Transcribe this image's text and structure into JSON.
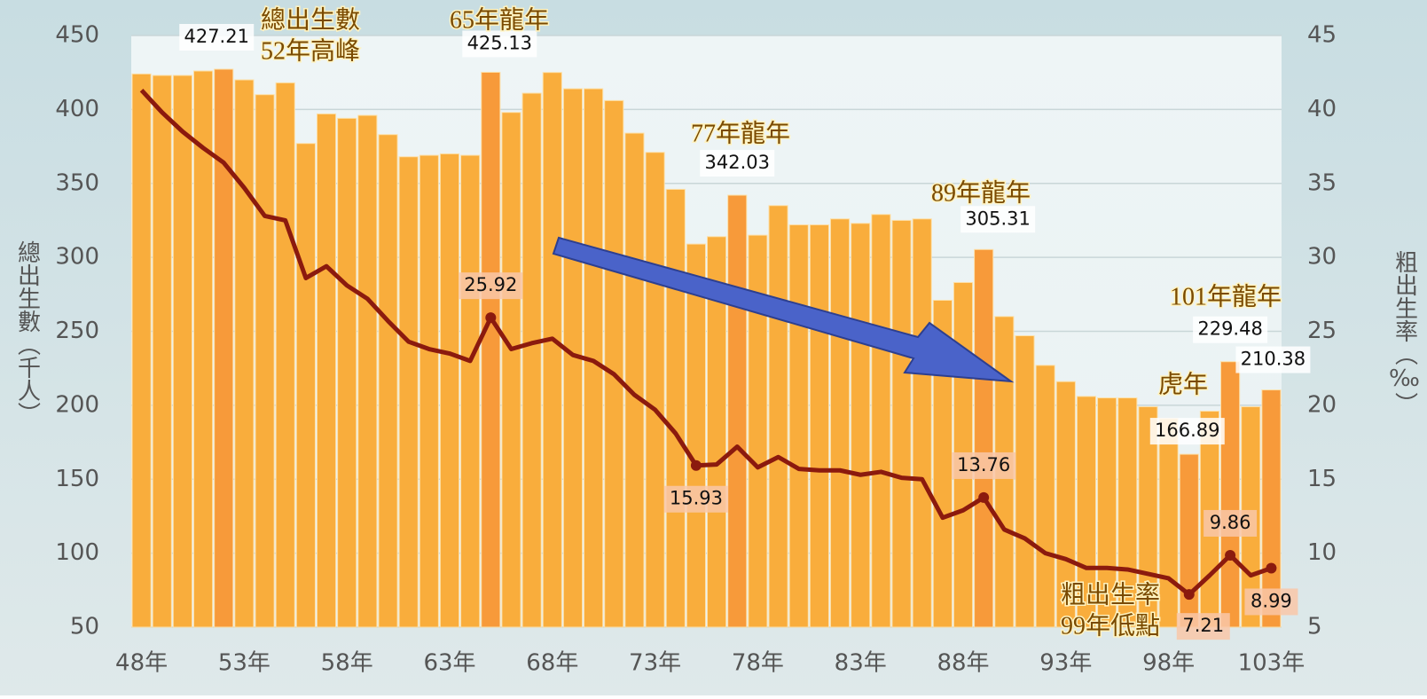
{
  "chart_data": {
    "type": "bar_line",
    "y_label": "總出生數（千人）",
    "y2_label": "粗出生率（‰）",
    "categories": [
      "48年",
      null,
      null,
      null,
      null,
      "53年",
      null,
      null,
      null,
      null,
      "58年",
      null,
      null,
      null,
      null,
      "63年",
      null,
      null,
      null,
      null,
      "68年",
      null,
      null,
      null,
      null,
      "73年",
      null,
      null,
      null,
      null,
      "78年",
      null,
      null,
      null,
      null,
      "83年",
      null,
      null,
      null,
      null,
      "88年",
      null,
      null,
      null,
      null,
      "93年",
      null,
      null,
      null,
      null,
      "98年",
      null,
      null,
      null,
      null,
      "103年"
    ],
    "ylim": [
      50,
      450
    ],
    "yticks": [
      50,
      100,
      150,
      200,
      250,
      300,
      350,
      400,
      450
    ],
    "y2lim": [
      5,
      45
    ],
    "y2ticks": [
      5,
      10,
      15,
      20,
      25,
      30,
      35,
      40,
      45
    ],
    "grid": true,
    "series": [
      {
        "name": "總出生數",
        "color": "#f9ad3c",
        "highlight_color": "#f79a3a",
        "values": [
          424,
          423,
          423,
          426,
          427.21,
          420,
          410,
          418,
          377,
          397,
          394,
          396,
          383,
          368,
          369,
          370,
          369,
          425.13,
          398,
          411,
          425,
          414,
          414,
          406,
          384,
          371,
          346,
          309,
          314,
          342.03,
          315,
          335,
          322,
          322,
          326,
          323,
          329,
          325,
          326,
          271,
          283,
          305.31,
          260,
          247,
          227,
          216,
          206,
          205,
          205,
          199,
          191,
          166.89,
          196,
          229.48,
          199,
          210.38
        ],
        "value_labels": [
          null,
          null,
          null,
          null,
          "427.21",
          null,
          null,
          null,
          null,
          null,
          null,
          null,
          null,
          null,
          null,
          null,
          null,
          "425.13",
          null,
          null,
          null,
          null,
          null,
          null,
          null,
          null,
          null,
          null,
          null,
          "342.03",
          null,
          null,
          null,
          null,
          null,
          null,
          null,
          null,
          null,
          null,
          null,
          "305.31",
          null,
          null,
          null,
          null,
          null,
          null,
          null,
          null,
          null,
          "166.89",
          null,
          "229.48",
          null,
          "210.38"
        ]
      },
      {
        "name": "粗出生率",
        "color": "#8b1a0e",
        "axis": "y2",
        "values": [
          41.3,
          39.8,
          38.5,
          37.4,
          36.4,
          34.7,
          32.8,
          32.5,
          28.6,
          29.4,
          28.1,
          27.2,
          25.7,
          24.3,
          23.8,
          23.5,
          23.0,
          25.92,
          23.8,
          24.2,
          24.5,
          23.4,
          23.0,
          22.1,
          20.7,
          19.7,
          18.1,
          15.93,
          16.0,
          17.2,
          15.8,
          16.5,
          15.7,
          15.6,
          15.6,
          15.3,
          15.5,
          15.1,
          15.0,
          12.4,
          12.9,
          13.76,
          11.6,
          11.0,
          10.0,
          9.6,
          9.0,
          9.0,
          8.9,
          8.6,
          8.3,
          7.21,
          8.5,
          9.86,
          8.5,
          8.99
        ],
        "value_labels": [
          null,
          null,
          null,
          null,
          null,
          null,
          null,
          null,
          null,
          null,
          null,
          null,
          null,
          null,
          null,
          null,
          null,
          "25.92",
          null,
          null,
          null,
          null,
          null,
          null,
          null,
          null,
          null,
          "15.93",
          null,
          null,
          null,
          null,
          null,
          null,
          null,
          null,
          null,
          null,
          null,
          null,
          null,
          "13.76",
          null,
          null,
          null,
          null,
          null,
          null,
          null,
          null,
          null,
          "7.21",
          null,
          "9.86",
          null,
          "8.99"
        ]
      }
    ],
    "annotations": [
      "總出生數",
      "52年高峰",
      "65年龍年",
      "77年龍年",
      "89年龍年",
      "101年龍年",
      "虎年",
      "粗出生率",
      "99年低點"
    ]
  }
}
